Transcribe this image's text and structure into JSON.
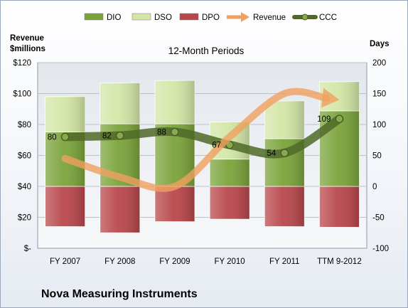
{
  "company_name": "Nova Measuring Instruments",
  "colors": {
    "dio": "#7aa33a",
    "dso": "#d3e6a6",
    "dpo": "#b8464a",
    "revenue": "#f0a060",
    "ccc": "#4f6a28"
  },
  "chart_data": {
    "type": "bar",
    "title": "12-Month Periods",
    "categories": [
      "FY 2007",
      "FY 2008",
      "FY 2009",
      "FY 2010",
      "FY 2011",
      "TTM 9-2012"
    ],
    "y_left": {
      "label_lines": [
        "Revenue",
        "$millions"
      ],
      "ticks": [
        "$-",
        "$20",
        "$40",
        "$60",
        "$80",
        "$100",
        "$120"
      ],
      "range": [
        0,
        120
      ]
    },
    "y_right": {
      "label": "Days",
      "ticks": [
        "-100",
        "-50",
        "0",
        "50",
        "100",
        "150",
        "200"
      ],
      "range": [
        -100,
        200
      ]
    },
    "legend": {
      "position": "top",
      "entries": [
        {
          "name": "DIO",
          "kind": "bar",
          "color": "#7aa33a"
        },
        {
          "name": "DSO",
          "kind": "bar",
          "color": "#d3e6a6"
        },
        {
          "name": "DPO",
          "kind": "bar",
          "color": "#b8464a"
        },
        {
          "name": "Revenue",
          "kind": "arrow",
          "color": "#f0a060"
        },
        {
          "name": "CCC",
          "kind": "line",
          "color": "#4f6a28"
        }
      ]
    },
    "series": [
      {
        "name": "DIO",
        "unit": "days",
        "values": [
          88,
          101,
          101,
          44,
          77,
          122
        ]
      },
      {
        "name": "DSO",
        "unit": "days",
        "values": [
          57,
          66,
          70,
          60,
          61,
          47
        ]
      },
      {
        "name": "DPO",
        "unit": "days",
        "values": [
          -65,
          -75,
          -57,
          -53,
          -65,
          -66
        ]
      },
      {
        "name": "Revenue",
        "unit": "$M",
        "values": [
          58,
          46,
          40,
          72,
          100,
          96
        ]
      },
      {
        "name": "CCC",
        "unit": "days",
        "values": [
          80,
          82,
          88,
          67,
          54,
          109
        ],
        "labels": [
          "80",
          "82",
          "88",
          "67",
          "54",
          "109"
        ]
      }
    ],
    "grid": true
  }
}
